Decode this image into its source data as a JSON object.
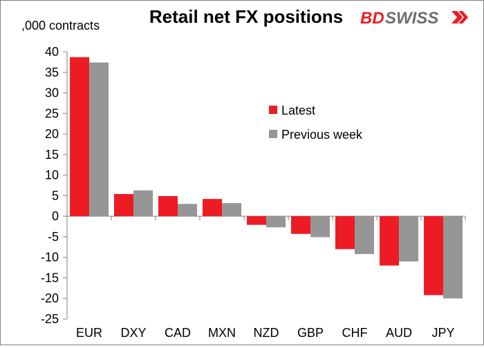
{
  "chart_data": {
    "type": "bar",
    "title": "Retail net FX positions",
    "ylabel": ",000 contracts",
    "xlabel": "",
    "categories": [
      "EUR",
      "DXY",
      "CAD",
      "MXN",
      "NZD",
      "GBP",
      "CHF",
      "AUD",
      "JPY"
    ],
    "series": [
      {
        "name": "Latest",
        "color": "#ed1c24",
        "values": [
          38.7,
          5.4,
          4.9,
          4.2,
          -2.1,
          -4.3,
          -8.0,
          -12.0,
          -19.2
        ]
      },
      {
        "name": "Previous week",
        "color": "#969696",
        "values": [
          37.4,
          6.3,
          3.0,
          3.2,
          -2.7,
          -5.1,
          -9.2,
          -11.0,
          -20.0
        ]
      }
    ],
    "ylim": [
      -25,
      40
    ],
    "yticks": [
      40,
      35,
      30,
      25,
      20,
      15,
      10,
      5,
      0,
      -5,
      -10,
      -15,
      -20,
      -25
    ],
    "grid": false,
    "legend_placement": "center-right"
  },
  "brand": {
    "logo_text_bd": "BD",
    "logo_text_swiss": "SWISS",
    "bd_color": "#ed1c24",
    "swiss_color": "#6d6e71"
  }
}
